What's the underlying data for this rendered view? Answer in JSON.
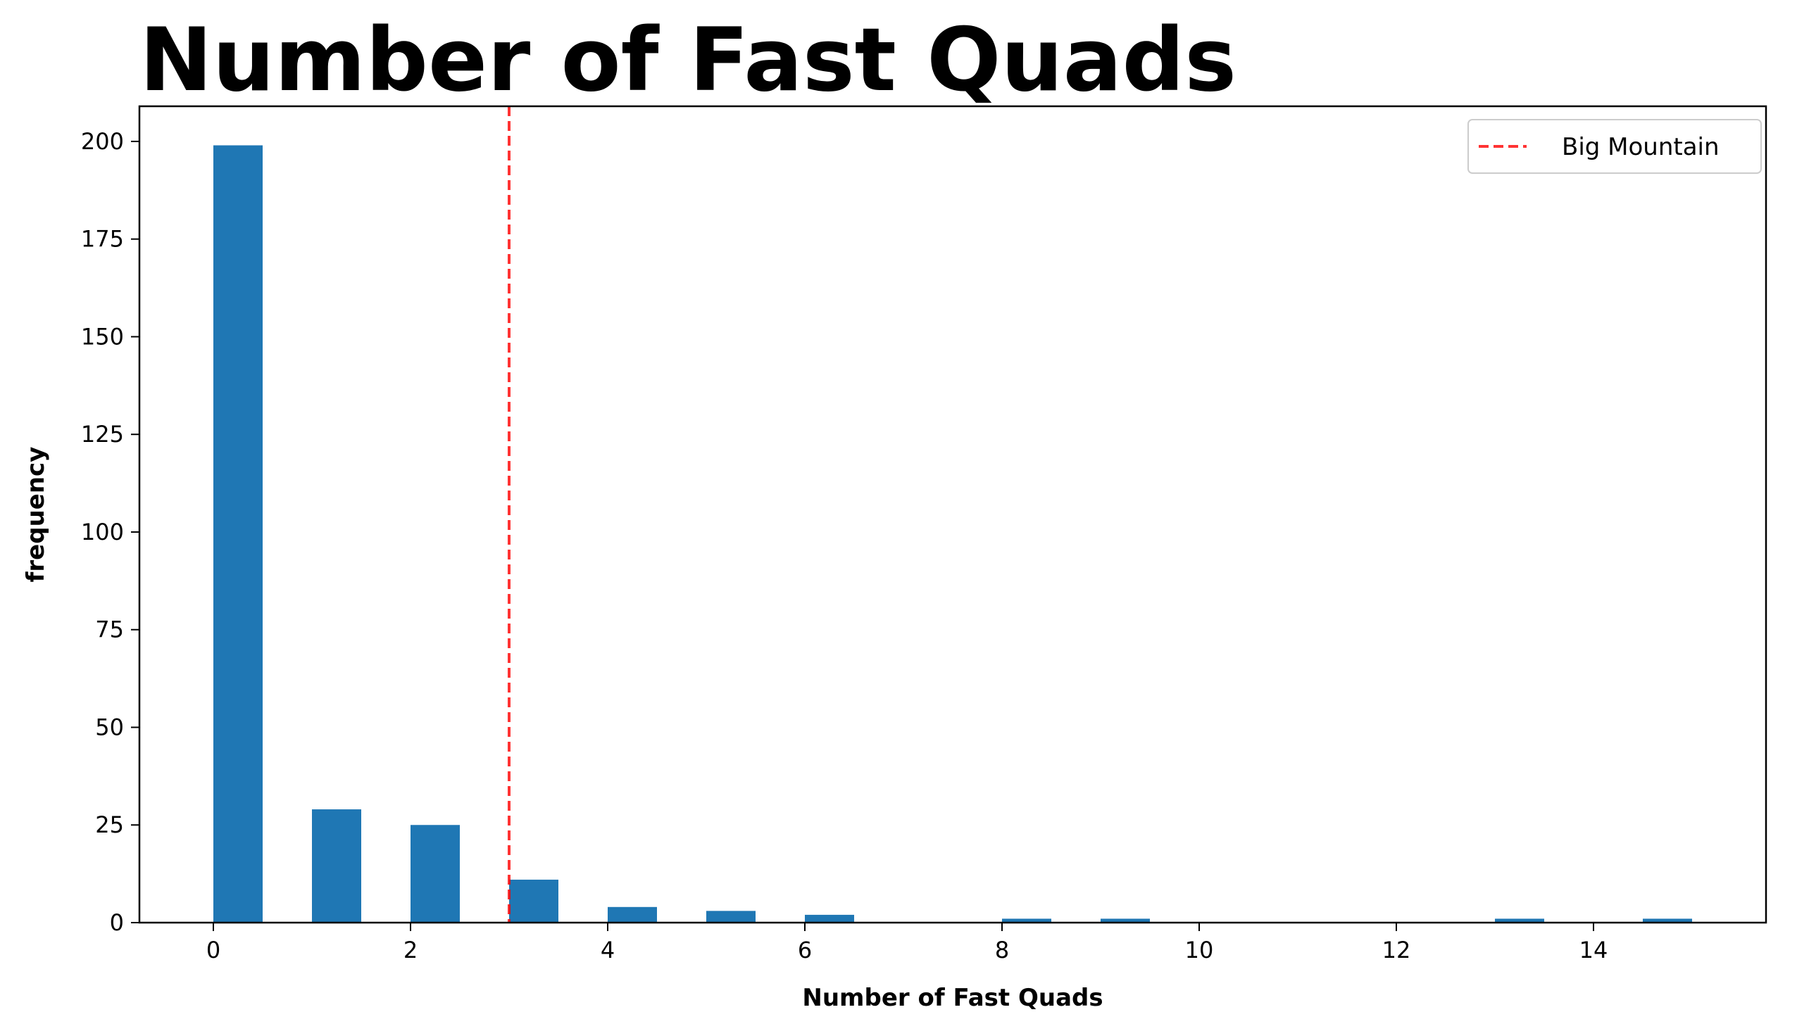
{
  "chart_data": {
    "type": "bar",
    "title": "Number of Fast Quads",
    "xlabel": "Number of Fast Quads",
    "ylabel": "frequency",
    "xlim": [
      -0.75,
      15.75
    ],
    "ylim": [
      0,
      209
    ],
    "xticks": [
      0,
      2,
      4,
      6,
      8,
      10,
      12,
      14
    ],
    "yticks": [
      0,
      25,
      50,
      75,
      100,
      125,
      150,
      175,
      200
    ],
    "bar_width": 0.5,
    "bar_color": "#1f77b4",
    "bars": [
      {
        "x": 0,
        "value": 199
      },
      {
        "x": 1,
        "value": 29
      },
      {
        "x": 2,
        "value": 25
      },
      {
        "x": 3,
        "value": 11
      },
      {
        "x": 4,
        "value": 4
      },
      {
        "x": 5,
        "value": 3
      },
      {
        "x": 6,
        "value": 2
      },
      {
        "x": 8,
        "value": 1
      },
      {
        "x": 9,
        "value": 1
      },
      {
        "x": 13,
        "value": 1
      },
      {
        "x": 14.5,
        "value": 1
      }
    ],
    "reference_line": {
      "x": 3,
      "label": "Big Mountain",
      "color": "#ff0000",
      "style": "dashed"
    },
    "legend": {
      "position": "top-right",
      "entries": [
        "Big Mountain"
      ]
    },
    "grid": false
  }
}
